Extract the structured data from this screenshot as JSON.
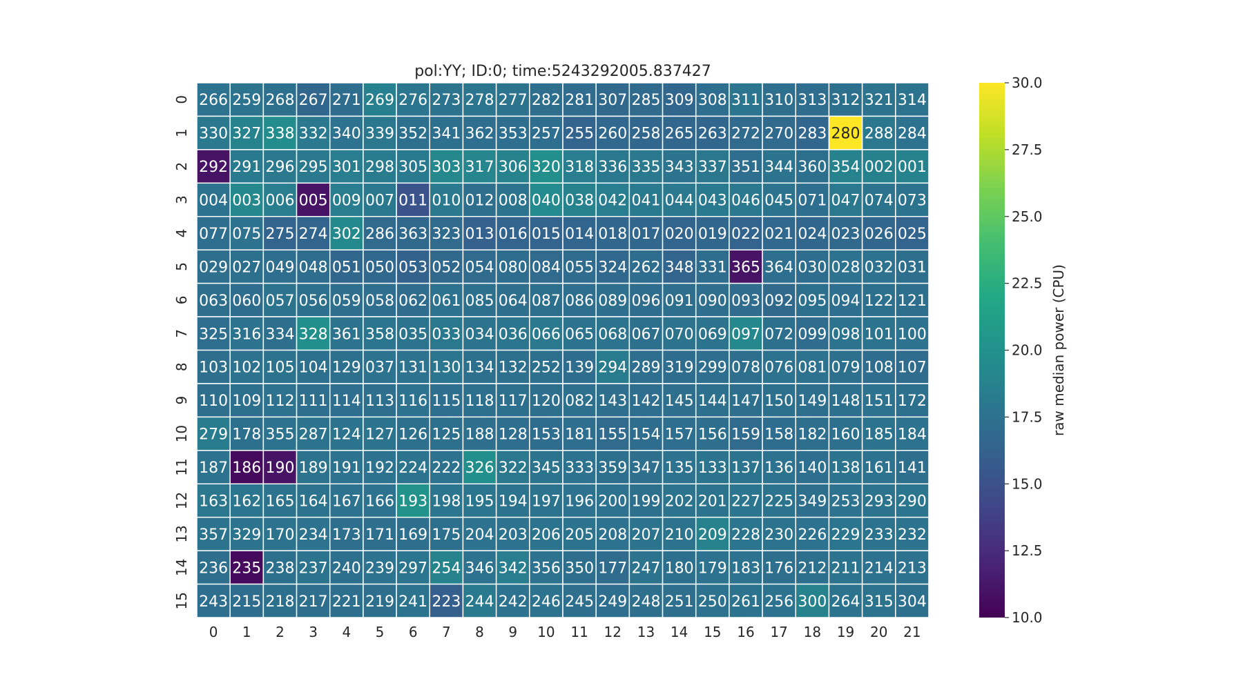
{
  "chart_data": {
    "type": "heatmap",
    "title": "pol:YY; ID:0; time:5243292005.837427",
    "colorbar": {
      "label": "raw median power (CPU)",
      "min": 10.0,
      "max": 30.0,
      "ticks": [
        "10.0",
        "12.5",
        "15.0",
        "17.5",
        "20.0",
        "22.5",
        "25.0",
        "27.5",
        "30.0"
      ],
      "colormap": "viridis"
    },
    "x_tick_labels": [
      "0",
      "1",
      "2",
      "3",
      "4",
      "5",
      "6",
      "7",
      "8",
      "9",
      "10",
      "11",
      "12",
      "13",
      "14",
      "15",
      "16",
      "17",
      "18",
      "19",
      "20",
      "21"
    ],
    "y_tick_labels": [
      "0",
      "1",
      "2",
      "3",
      "4",
      "5",
      "6",
      "7",
      "8",
      "9",
      "10",
      "11",
      "12",
      "13",
      "14",
      "15"
    ],
    "annotations": [
      [
        "266",
        "259",
        "268",
        "267",
        "271",
        "269",
        "276",
        "273",
        "278",
        "277",
        "282",
        "281",
        "307",
        "285",
        "309",
        "308",
        "311",
        "310",
        "313",
        "312",
        "321",
        "314"
      ],
      [
        "330",
        "327",
        "338",
        "332",
        "340",
        "339",
        "352",
        "341",
        "362",
        "353",
        "257",
        "255",
        "260",
        "258",
        "265",
        "263",
        "272",
        "270",
        "283",
        "280",
        "288",
        "284"
      ],
      [
        "292",
        "291",
        "296",
        "295",
        "301",
        "298",
        "305",
        "303",
        "317",
        "306",
        "320",
        "318",
        "336",
        "335",
        "343",
        "337",
        "351",
        "344",
        "360",
        "354",
        "002",
        "001"
      ],
      [
        "004",
        "003",
        "006",
        "005",
        "009",
        "007",
        "011",
        "010",
        "012",
        "008",
        "040",
        "038",
        "042",
        "041",
        "044",
        "043",
        "046",
        "045",
        "071",
        "047",
        "074",
        "073"
      ],
      [
        "077",
        "075",
        "275",
        "274",
        "302",
        "286",
        "363",
        "323",
        "013",
        "016",
        "015",
        "014",
        "018",
        "017",
        "020",
        "019",
        "022",
        "021",
        "024",
        "023",
        "026",
        "025"
      ],
      [
        "029",
        "027",
        "049",
        "048",
        "051",
        "050",
        "053",
        "052",
        "054",
        "080",
        "084",
        "055",
        "324",
        "262",
        "348",
        "331",
        "365",
        "364",
        "030",
        "028",
        "032",
        "031"
      ],
      [
        "063",
        "060",
        "057",
        "056",
        "059",
        "058",
        "062",
        "061",
        "085",
        "064",
        "087",
        "086",
        "089",
        "096",
        "091",
        "090",
        "093",
        "092",
        "095",
        "094",
        "122",
        "121"
      ],
      [
        "325",
        "316",
        "334",
        "328",
        "361",
        "358",
        "035",
        "033",
        "034",
        "036",
        "066",
        "065",
        "068",
        "067",
        "070",
        "069",
        "097",
        "072",
        "099",
        "098",
        "101",
        "100"
      ],
      [
        "103",
        "102",
        "105",
        "104",
        "129",
        "037",
        "131",
        "130",
        "134",
        "132",
        "252",
        "139",
        "294",
        "289",
        "319",
        "299",
        "078",
        "076",
        "081",
        "079",
        "108",
        "107"
      ],
      [
        "110",
        "109",
        "112",
        "111",
        "114",
        "113",
        "116",
        "115",
        "118",
        "117",
        "120",
        "082",
        "143",
        "142",
        "145",
        "144",
        "147",
        "150",
        "149",
        "148",
        "151",
        "172"
      ],
      [
        "279",
        "178",
        "355",
        "287",
        "124",
        "127",
        "126",
        "125",
        "188",
        "128",
        "153",
        "181",
        "155",
        "154",
        "157",
        "156",
        "159",
        "158",
        "182",
        "160",
        "185",
        "184"
      ],
      [
        "187",
        "186",
        "190",
        "189",
        "191",
        "192",
        "224",
        "222",
        "326",
        "322",
        "345",
        "333",
        "359",
        "347",
        "135",
        "133",
        "137",
        "136",
        "140",
        "138",
        "161",
        "141"
      ],
      [
        "163",
        "162",
        "165",
        "164",
        "167",
        "166",
        "193",
        "198",
        "195",
        "194",
        "197",
        "196",
        "200",
        "199",
        "202",
        "201",
        "227",
        "225",
        "349",
        "253",
        "293",
        "290"
      ],
      [
        "357",
        "329",
        "170",
        "234",
        "173",
        "171",
        "169",
        "175",
        "204",
        "203",
        "206",
        "205",
        "208",
        "207",
        "210",
        "209",
        "228",
        "230",
        "226",
        "229",
        "233",
        "232"
      ],
      [
        "236",
        "235",
        "238",
        "237",
        "240",
        "239",
        "297",
        "254",
        "346",
        "342",
        "356",
        "350",
        "177",
        "247",
        "180",
        "179",
        "183",
        "176",
        "212",
        "211",
        "214",
        "213"
      ],
      [
        "243",
        "215",
        "218",
        "217",
        "221",
        "219",
        "241",
        "223",
        "244",
        "242",
        "246",
        "245",
        "249",
        "248",
        "251",
        "250",
        "261",
        "256",
        "300",
        "264",
        "315",
        "304"
      ]
    ],
    "values": [
      [
        17.5,
        17.6,
        17.4,
        16.6,
        17.1,
        18.6,
        17.8,
        17.7,
        17.8,
        17.7,
        17.3,
        17.0,
        16.8,
        16.9,
        16.6,
        17.2,
        17.8,
        17.3,
        17.1,
        17.4,
        17.7,
        17.6
      ],
      [
        18.1,
        18.8,
        19.6,
        18.1,
        17.5,
        17.9,
        17.4,
        17.4,
        17.2,
        17.2,
        17.2,
        16.4,
        16.7,
        16.6,
        16.6,
        16.6,
        16.9,
        16.9,
        16.6,
        30.0,
        17.9,
        17.5
      ],
      [
        11.0,
        18.2,
        18.1,
        18.1,
        18.4,
        18.3,
        18.2,
        19.3,
        19.0,
        18.9,
        19.8,
        18.5,
        18.0,
        18.1,
        17.6,
        17.9,
        17.2,
        17.6,
        17.4,
        18.9,
        18.7,
        18.8
      ],
      [
        17.5,
        19.3,
        18.5,
        11.0,
        18.4,
        18.0,
        15.2,
        18.1,
        17.3,
        17.7,
        19.5,
        18.8,
        18.5,
        18.2,
        18.1,
        18.2,
        18.1,
        17.7,
        17.2,
        18.1,
        17.6,
        17.6
      ],
      [
        17.2,
        17.5,
        16.4,
        16.5,
        19.4,
        16.9,
        16.8,
        16.9,
        16.2,
        16.4,
        16.4,
        16.5,
        16.6,
        16.6,
        16.5,
        16.6,
        16.4,
        16.7,
        16.6,
        16.8,
        16.6,
        16.4
      ],
      [
        17.3,
        17.4,
        17.2,
        17.1,
        16.6,
        16.7,
        16.3,
        16.8,
        16.9,
        17.1,
        16.9,
        17.0,
        16.7,
        17.1,
        16.5,
        17.1,
        11.0,
        17.2,
        17.1,
        17.5,
        17.5,
        17.3
      ],
      [
        17.3,
        17.1,
        17.6,
        17.4,
        17.3,
        17.2,
        17.0,
        17.5,
        17.4,
        17.3,
        17.4,
        17.2,
        17.3,
        17.1,
        17.3,
        17.3,
        17.0,
        16.8,
        17.4,
        17.2,
        17.4,
        17.3
      ],
      [
        17.2,
        17.5,
        17.3,
        19.9,
        17.7,
        17.8,
        17.6,
        18.0,
        17.7,
        17.8,
        18.1,
        17.6,
        17.6,
        17.4,
        17.6,
        17.6,
        19.3,
        17.4,
        17.0,
        17.6,
        17.7,
        17.5
      ],
      [
        17.3,
        17.5,
        17.6,
        17.4,
        17.4,
        17.5,
        17.5,
        17.8,
        17.4,
        17.4,
        17.4,
        17.1,
        18.3,
        17.2,
        17.1,
        17.2,
        17.3,
        17.5,
        17.5,
        17.4,
        17.1,
        17.0
      ],
      [
        17.3,
        17.4,
        17.5,
        17.3,
        17.2,
        17.3,
        17.5,
        17.2,
        17.4,
        17.4,
        17.3,
        17.4,
        17.3,
        17.2,
        17.3,
        17.4,
        17.3,
        17.4,
        17.3,
        17.4,
        17.5,
        17.4
      ],
      [
        18.3,
        17.4,
        17.5,
        17.6,
        17.7,
        17.6,
        17.4,
        17.4,
        17.3,
        17.2,
        17.1,
        17.2,
        16.9,
        17.1,
        17.2,
        17.3,
        16.9,
        17.1,
        17.3,
        17.4,
        17.6,
        17.5
      ],
      [
        17.5,
        10.5,
        11.0,
        17.6,
        17.5,
        17.5,
        17.7,
        17.5,
        19.8,
        17.9,
        17.7,
        17.5,
        17.4,
        17.3,
        17.5,
        17.6,
        17.6,
        17.5,
        17.2,
        17.6,
        17.5,
        17.3
      ],
      [
        17.9,
        17.8,
        17.7,
        17.6,
        17.5,
        17.5,
        20.2,
        17.8,
        17.8,
        17.6,
        17.6,
        17.5,
        17.5,
        17.4,
        17.6,
        17.7,
        17.8,
        17.6,
        17.3,
        17.5,
        17.6,
        17.8
      ],
      [
        17.6,
        17.7,
        17.6,
        17.5,
        17.3,
        17.3,
        17.3,
        17.4,
        17.5,
        17.5,
        17.7,
        17.6,
        17.5,
        17.6,
        17.7,
        18.8,
        17.8,
        17.7,
        17.5,
        17.8,
        17.6,
        17.6
      ],
      [
        17.3,
        10.5,
        17.4,
        17.6,
        17.4,
        17.5,
        17.8,
        18.8,
        17.5,
        18.4,
        17.5,
        17.3,
        17.0,
        17.6,
        17.4,
        17.5,
        17.5,
        17.3,
        17.4,
        17.6,
        17.5,
        17.5
      ],
      [
        17.2,
        17.1,
        17.4,
        17.3,
        17.3,
        17.3,
        17.7,
        16.0,
        18.2,
        17.5,
        17.5,
        17.3,
        17.2,
        17.3,
        17.3,
        17.5,
        17.6,
        17.5,
        18.9,
        17.6,
        17.6,
        17.4
      ]
    ]
  },
  "colors": {
    "background": "#ffffff",
    "cell_border": "#ffffff",
    "text_dark": "#262626",
    "text_light": "#ffffff"
  }
}
